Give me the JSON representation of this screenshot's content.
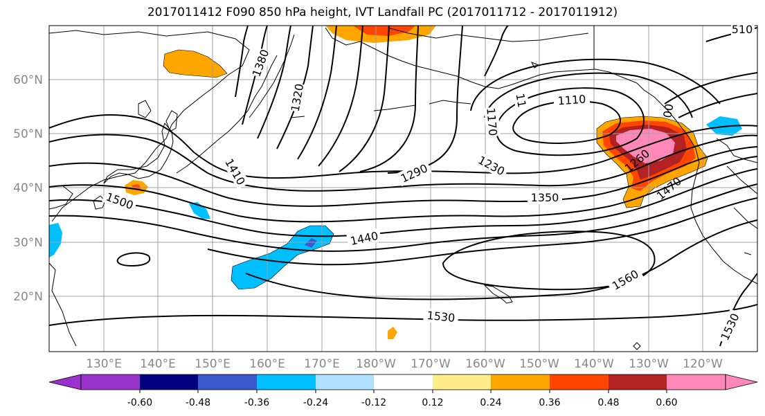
{
  "title": "2017011412 F090 850 hPa height, IVT Landfall PC (2017011712 - 2017011912)",
  "lat_ticks": [
    "60°N",
    "50°N",
    "40°N",
    "30°N",
    "20°N"
  ],
  "lon_ticks": [
    "130°E",
    "140°E",
    "150°E",
    "160°E",
    "170°E",
    "180°W",
    "170°W",
    "160°W",
    "150°W",
    "140°W",
    "130°W",
    "120°W"
  ],
  "colorbar": {
    "colors": [
      "#9933cc",
      "#000080",
      "#3a5acd",
      "#00bfff",
      "#b0e0ff",
      "#ffffff",
      "#ffec8b",
      "#ffa500",
      "#ff4500",
      "#b22222",
      "#ff88b8"
    ],
    "extend_low_color": "#9933cc",
    "extend_high_color": "#ff88b8",
    "tick_labels": [
      "-0.60",
      "-0.48",
      "-0.36",
      "-0.24",
      "-0.12",
      "0.12",
      "0.24",
      "0.36",
      "0.48",
      "0.60"
    ]
  },
  "contour_labels": {
    "c1380": "1380",
    "c1320": "1320",
    "c1110": "1110",
    "c1170": "1170",
    "c11": "11",
    "c1290": "1290",
    "c1230": "1230",
    "c1410": "1410",
    "c1500": "1500",
    "c1350": "1350",
    "c1260": "1260",
    "c1470": "1470",
    "c1440": "1440",
    "c1560": "1560",
    "c1530a": "1530",
    "c1530b": "1530",
    "c510": "510",
    "c00": "00"
  }
}
